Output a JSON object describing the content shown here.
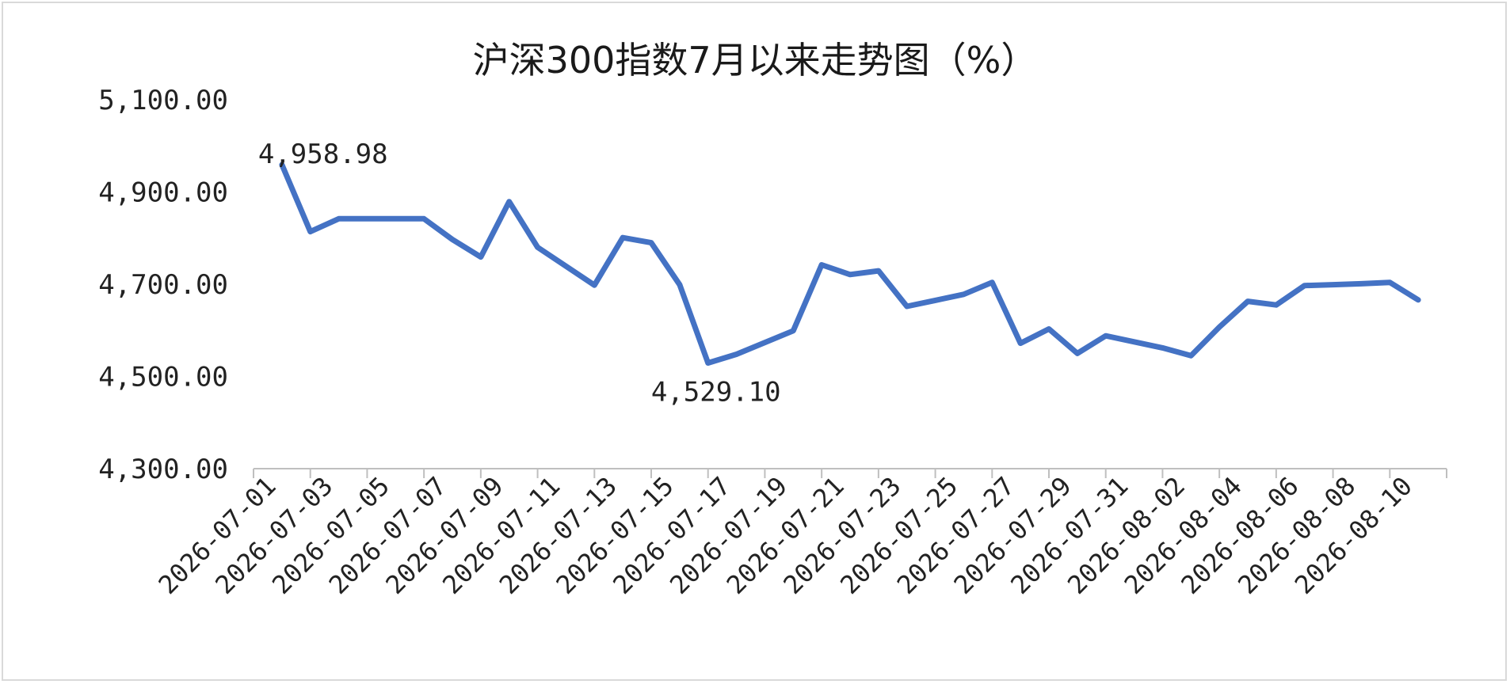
{
  "chart_data": {
    "type": "line",
    "title": "沪深300指数7月以来走势图（%）",
    "xlabel": "",
    "ylabel": "",
    "ylim": [
      4300,
      5100
    ],
    "ytick_labels": [
      "4,300.00",
      "4,500.00",
      "4,700.00",
      "4,900.00",
      "5,100.00"
    ],
    "ytick_values": [
      4300,
      4500,
      4700,
      4900,
      5100
    ],
    "xtick_labels": [
      "2026-07-01",
      "2026-07-03",
      "2026-07-05",
      "2026-07-07",
      "2026-07-09",
      "2026-07-11",
      "2026-07-13",
      "2026-07-15",
      "2026-07-17",
      "2026-07-19",
      "2026-07-21",
      "2026-07-23",
      "2026-07-25",
      "2026-07-27",
      "2026-07-29",
      "2026-07-31",
      "2026-08-02",
      "2026-08-04",
      "2026-08-06",
      "2026-08-08",
      "2026-08-10"
    ],
    "x_range": [
      "2026-07-01",
      "2026-08-12"
    ],
    "grid": false,
    "legend": "none",
    "line_color": "#4472C4",
    "series": [
      {
        "x": [
          "2026-07-02",
          "2026-07-03",
          "2026-07-04",
          "2026-07-05",
          "2026-07-06",
          "2026-07-07",
          "2026-07-08",
          "2026-07-09",
          "2026-07-10",
          "2026-07-11",
          "2026-07-13",
          "2026-07-14",
          "2026-07-15",
          "2026-07-16",
          "2026-07-17",
          "2026-07-18",
          "2026-07-20",
          "2026-07-21",
          "2026-07-22",
          "2026-07-23",
          "2026-07-24",
          "2026-07-25",
          "2026-07-26",
          "2026-07-27",
          "2026-07-28",
          "2026-07-29",
          "2026-07-30",
          "2026-07-31",
          "2026-08-01",
          "2026-08-02",
          "2026-08-03",
          "2026-08-04",
          "2026-08-05",
          "2026-08-06",
          "2026-08-07",
          "2026-08-08",
          "2026-08-09",
          "2026-08-10",
          "2026-08-11"
        ],
        "values": [
          4958.98,
          4814,
          4842,
          4842,
          4842,
          4842,
          4797,
          4759,
          4879,
          4780,
          4698,
          4801,
          4790,
          4699,
          4529.1,
          4548,
          4599,
          4742,
          4721,
          4729,
          4652,
          4665,
          4678,
          4704,
          4572,
          4603,
          4550,
          4588,
          4575,
          4562,
          4545,
          4607,
          4663,
          4655,
          4697,
          4699,
          4701,
          4704,
          4666
        ]
      }
    ],
    "data_labels": [
      {
        "text": "4,958.98",
        "date": "2026-07-02",
        "value": 4958.98
      },
      {
        "text": "4,529.10",
        "date": "2026-07-17",
        "value": 4529.1
      }
    ]
  }
}
